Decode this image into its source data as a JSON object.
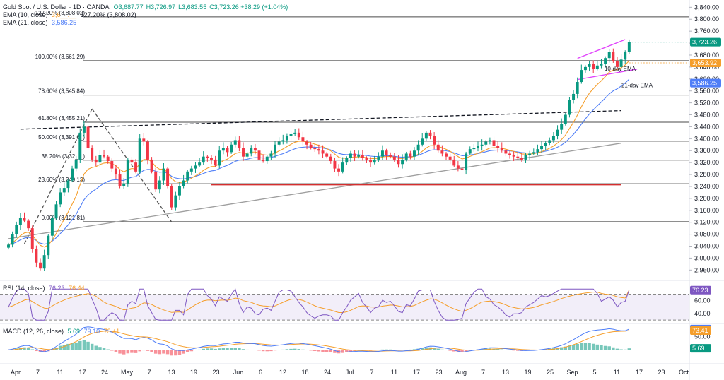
{
  "header": {
    "symbol": "Gold Spot / U.S. Dollar · 1D · OANDA",
    "ohlc": [
      {
        "k": "O",
        "v": "3,687.77",
        "color": "#089981"
      },
      {
        "k": "H",
        "v": "3,726.97",
        "color": "#089981"
      },
      {
        "k": "L",
        "v": "3,683.55",
        "color": "#089981"
      },
      {
        "k": "C",
        "v": "3,723.26 +38.29 (+1.04%)",
        "color": "#089981"
      }
    ],
    "ema10": {
      "label": "EMA (10, close)",
      "value": "3,6__.__",
      "color": "#f59e2b"
    },
    "ema21": {
      "label": "EMA (21, close)",
      "value": "3,586.25",
      "color": "#4f7ef7"
    },
    "overlay_note": "127.20% (3,808.02)"
  },
  "panels": {
    "rsi": {
      "label": "RSI (14, close)",
      "v1": "76.23",
      "v2": "76.44",
      "c1": "#7e57c2",
      "c2": "#f59e2b"
    },
    "macd": {
      "label": "MACD (12, 26, close)",
      "v1": "5.69",
      "v2": "79.10",
      "v3": "73.41",
      "c1": "#089981",
      "c2": "#4f7ef7",
      "c3": "#f59e2b"
    }
  },
  "chart_data": {
    "type": "candlestick",
    "instrument": "XAU/USD",
    "timeframe": "1D",
    "price_axis": [
      "3,840.00",
      "3,800.00",
      "3,760.00",
      "3,720.00",
      "3,680.00",
      "3,640.00",
      "3,600.00",
      "3,560.00",
      "3,520.00",
      "3,480.00",
      "3,440.00",
      "3,400.00",
      "3,360.00",
      "3,320.00",
      "3,280.00",
      "3,240.00",
      "3,200.00",
      "3,160.00",
      "3,120.00",
      "3,080.00",
      "3,040.00",
      "3,000.00",
      "2,960.00"
    ],
    "ylim": [
      2930,
      3855
    ],
    "x_ticks": [
      "Apr",
      "7",
      "11",
      "17",
      "24",
      "May",
      "7",
      "13",
      "19",
      "23",
      "Jun",
      "6",
      "12",
      "18",
      "24",
      "Jul",
      "7",
      "11",
      "17",
      "23",
      "Aug",
      "7",
      "13",
      "19",
      "25",
      "Sep",
      "5",
      "11",
      "17",
      "23",
      "Oct"
    ],
    "price_tags": [
      {
        "text": "3,723.26",
        "value": 3723.26,
        "color": "#089981"
      },
      {
        "text": "3,653.92",
        "value": 3653.92,
        "color": "#f59e2b"
      },
      {
        "text": "3,586.25",
        "value": 3586.25,
        "color": "#4f7ef7"
      }
    ],
    "fib_levels": [
      {
        "label": "127.20% (3,808.02)",
        "value": 3808.02
      },
      {
        "label": "100.00% (3,661.29)",
        "value": 3661.29
      },
      {
        "label": "78.60% (3,545.84)",
        "value": 3545.84
      },
      {
        "label": "61.80% (3,455.21)",
        "value": 3455.21
      },
      {
        "label": "50.00% (3,391.6_)",
        "value": 3391.6
      },
      {
        "label": "38.20% (3,32_._)",
        "value": 3328
      },
      {
        "label": "23.60% (3,249.13)",
        "value": 3249.13
      },
      {
        "label": "0.00% (3,121.81)",
        "value": 3121.81
      }
    ],
    "annotations": [
      {
        "text": "10-day EMA",
        "value": 3628,
        "color": "#f59e2b"
      },
      {
        "text": "21-day EMA",
        "value": 3572,
        "color": "#4f7ef7"
      }
    ],
    "trend_lines": [
      {
        "name": "support",
        "style": "solid",
        "color": "#9e9e9e",
        "from": [
          0,
          3065
        ],
        "to": [
          154,
          3385
        ]
      },
      {
        "name": "resistance",
        "style": "dashed",
        "color": "#131722",
        "from": [
          3,
          3432
        ],
        "to": [
          154,
          3494
        ]
      },
      {
        "name": "horizontal",
        "style": "solid",
        "color": "#d32f2f",
        "from": [
          51,
          3246
        ],
        "to": [
          154,
          3246
        ]
      },
      {
        "name": "wedge-upper",
        "style": "solid",
        "color": "#e040fb",
        "from": [
          143,
          3669
        ],
        "to": [
          155,
          3732
        ]
      },
      {
        "name": "wedge-lower",
        "style": "solid",
        "color": "#e040fb",
        "from": [
          143,
          3598
        ],
        "to": [
          158,
          3633
        ]
      },
      {
        "name": "swing-up",
        "style": "dashed",
        "color": "#555555",
        "from": [
          4,
          3048
        ],
        "to": [
          21,
          3500
        ]
      },
      {
        "name": "swing-down",
        "style": "dashed",
        "color": "#555555",
        "from": [
          21,
          3500
        ],
        "to": [
          41,
          3121
        ]
      }
    ],
    "closes": [
      3045,
      3080,
      3110,
      3135,
      3125,
      3100,
      3030,
      2985,
      2965,
      3010,
      3075,
      3135,
      3180,
      3220,
      3235,
      3260,
      3300,
      3330,
      3420,
      3440,
      3370,
      3330,
      3320,
      3345,
      3340,
      3325,
      3300,
      3280,
      3240,
      3250,
      3330,
      3320,
      3290,
      3400,
      3390,
      3330,
      3290,
      3230,
      3260,
      3300,
      3240,
      3170,
      3210,
      3240,
      3260,
      3290,
      3300,
      3310,
      3320,
      3340,
      3335,
      3330,
      3310,
      3360,
      3370,
      3355,
      3380,
      3395,
      3370,
      3340,
      3350,
      3370,
      3360,
      3330,
      3325,
      3340,
      3350,
      3380,
      3390,
      3395,
      3410,
      3415,
      3420,
      3405,
      3390,
      3380,
      3370,
      3365,
      3360,
      3350,
      3340,
      3325,
      3300,
      3290,
      3320,
      3335,
      3350,
      3340,
      3345,
      3335,
      3330,
      3320,
      3330,
      3340,
      3360,
      3345,
      3340,
      3330,
      3315,
      3330,
      3350,
      3340,
      3360,
      3380,
      3400,
      3420,
      3410,
      3380,
      3360,
      3350,
      3340,
      3330,
      3310,
      3300,
      3295,
      3350,
      3365,
      3370,
      3375,
      3380,
      3390,
      3395,
      3375,
      3370,
      3360,
      3350,
      3345,
      3340,
      3335,
      3330,
      3345,
      3350,
      3355,
      3365,
      3375,
      3385,
      3395,
      3410,
      3430,
      3450,
      3480,
      3530,
      3550,
      3590,
      3630,
      3640,
      3650,
      3635,
      3645,
      3650,
      3670,
      3690,
      3660,
      3640,
      3665,
      3690,
      3723.26
    ],
    "rsi": {
      "axis": [
        "76.44",
        "60.00",
        "40.00"
      ],
      "ylim": [
        28,
        88
      ],
      "bands": [
        70,
        30
      ],
      "last": 76.23,
      "signal_last": 76.44
    },
    "macd": {
      "axis": [
        "50.00"
      ],
      "ylim": [
        -45,
        95
      ],
      "macd_last": 79.1,
      "signal_last": 73.41,
      "hist_last": 5.69
    }
  }
}
